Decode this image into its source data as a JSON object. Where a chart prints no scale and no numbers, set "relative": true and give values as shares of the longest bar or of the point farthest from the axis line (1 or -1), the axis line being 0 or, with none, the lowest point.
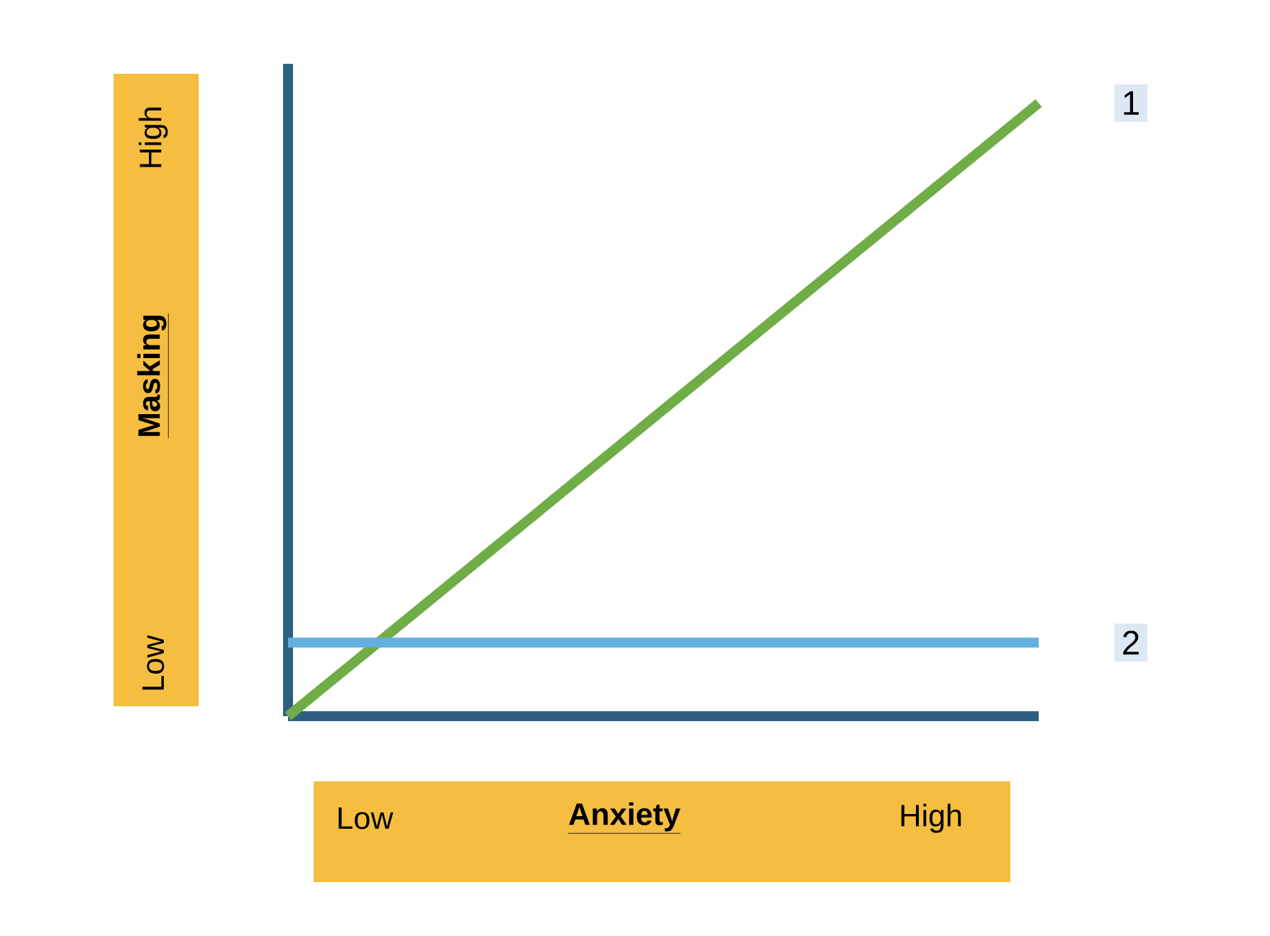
{
  "chart_data": {
    "type": "line",
    "relative": true,
    "xlabel": "Anxiety",
    "ylabel": "Masking",
    "categories": [
      null,
      null
    ],
    "annotations": [
      "Low",
      "High",
      "Low",
      "High"
    ],
    "ref_lines": [
      {
        "axis": "y",
        "value": 0,
        "color": "#2e5f80"
      }
    ],
    "series": [
      {
        "name": "1",
        "color": "#70ad47",
        "values": [
          0,
          1
        ]
      },
      {
        "name": "2",
        "color": "#63b0e0",
        "values": [
          0.12,
          0.12
        ]
      }
    ]
  }
}
